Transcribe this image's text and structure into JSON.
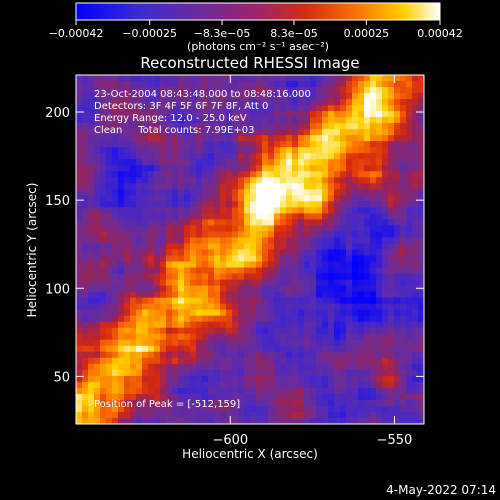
{
  "chart_data": {
    "type": "heatmap",
    "title": "Reconstructed RHESSI Image",
    "xlabel": "Heliocentric X (arcsec)",
    "ylabel": "Heliocentric Y (arcsec)",
    "xlim": [
      -647,
      -541
    ],
    "ylim": [
      23,
      221
    ],
    "xticks": [
      -600,
      -550,
      -500
    ],
    "yticks": [
      50,
      100,
      150,
      200
    ],
    "colorbar": {
      "label": "(photons cm⁻² s⁻¹ asec⁻²)",
      "ticks": [
        -0.00042,
        -0.00025,
        -8.3e-05,
        8.3e-05,
        0.00025,
        0.00042
      ],
      "tick_labels": [
        "−0.00042",
        "−0.00025",
        "−8.3e−05",
        "8.3e−05",
        "0.00025",
        "0.00042"
      ],
      "range": [
        -0.00042,
        0.00042
      ],
      "colors": [
        "#0000ff",
        "#5a1fb8",
        "#8a2a7e",
        "#c42a1c",
        "#ff7000",
        "#ffd400",
        "#ffffff"
      ]
    },
    "annotations": [
      "23-Oct-2004 08:43:48.000 to 08:48:16.000",
      "Detectors: 3F 4F 5F 6F 7F 8F, Att 0",
      "Energy Range: 12.0 - 25.0 keV",
      "Clean     Total counts: 7.99E+03"
    ],
    "peak_label": "Position of Peak = [-512,159]",
    "grid": false
  },
  "footer": {
    "timestamp": "4-May-2022 07:14"
  }
}
